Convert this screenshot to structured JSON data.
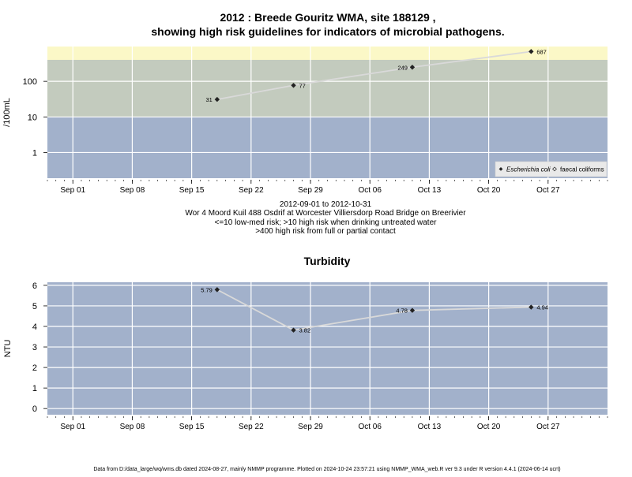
{
  "title_line1": "2012 : Breede Gouritz WMA, site 188129 ,",
  "title_line2": "showing high risk guidelines for indicators of microbial pathogens.",
  "caption": [
    "2012-09-01 to 2012-10-31",
    "Wor 4 Moord Kuil 488 Osdrif at Worcester Villiersdorp Road Bridge on Breerivier",
    "<=10 low-med risk; >10 high risk when drinking untreated water",
    ">400 high risk from full or partial contact"
  ],
  "footer": "Data from D:/data_large/wq/wms.db dated 2024-08-27, mainly NMMP programme. Plotted on 2024-10-24 23:57:21 using NMMP_WMA_web.R ver 9.3 under R version 4.4.1 (2024-06-14 ucrt)",
  "x_ticks": [
    {
      "label": "Sep 01",
      "date": "2012-09-01"
    },
    {
      "label": "Sep 08",
      "date": "2012-09-08"
    },
    {
      "label": "Sep 15",
      "date": "2012-09-15"
    },
    {
      "label": "Sep 22",
      "date": "2012-09-22"
    },
    {
      "label": "Sep 29",
      "date": "2012-09-29"
    },
    {
      "label": "Oct 06",
      "date": "2012-10-06"
    },
    {
      "label": "Oct 13",
      "date": "2012-10-13"
    },
    {
      "label": "Oct 20",
      "date": "2012-10-20"
    },
    {
      "label": "Oct 27",
      "date": "2012-10-27"
    }
  ],
  "chart_data": [
    {
      "type": "scatter",
      "title": "",
      "xlabel": "",
      "ylabel": "/100mL",
      "yscale": "log",
      "x_range": [
        "2012-08-29",
        "2012-11-03"
      ],
      "ylim": [
        0.19,
        950
      ],
      "y_ticks": [
        1,
        10,
        100
      ],
      "y_tick_labels": [
        "1",
        "10",
        "100"
      ],
      "grid": true,
      "risk_bands": [
        {
          "from": 0.19,
          "to": 10,
          "color": "#a2b1cb"
        },
        {
          "from": 10,
          "to": 400,
          "color": "#c3cbbe"
        },
        {
          "from": 400,
          "to": 950,
          "color": "#fbf8c7"
        }
      ],
      "legend_position": "bottom-right",
      "series": [
        {
          "name": "Escherichia coli",
          "marker": "diamond",
          "x": [
            "2012-09-18",
            "2012-09-27",
            "2012-10-11",
            "2012-10-25"
          ],
          "values": [
            31,
            77,
            249,
            687
          ],
          "labels": [
            "31",
            "77",
            "249",
            "687"
          ]
        },
        {
          "name": "faecal coliforms",
          "marker": "open-diamond",
          "x": [],
          "values": [],
          "labels": []
        }
      ]
    },
    {
      "type": "line",
      "title": "Turbidity",
      "xlabel": "",
      "ylabel": "NTU",
      "x_range": [
        "2012-08-29",
        "2012-11-03"
      ],
      "ylim": [
        -0.3,
        6.15
      ],
      "y_ticks": [
        0,
        1,
        2,
        3,
        4,
        5,
        6
      ],
      "y_tick_labels": [
        "0",
        "1",
        "2",
        "3",
        "4",
        "5",
        "6"
      ],
      "grid": true,
      "series": [
        {
          "name": "",
          "x": [
            "2012-09-18",
            "2012-09-27",
            "2012-10-11",
            "2012-10-25"
          ],
          "values": [
            5.79,
            3.82,
            4.78,
            4.94
          ],
          "labels": [
            "5.79",
            "3.82",
            "4.78",
            "4.94"
          ]
        }
      ]
    }
  ],
  "colors": {
    "panel_bg": "#a2b1cb",
    "gridline": "#ffffff",
    "series_line": "#d9d9d9",
    "marker": "#222222"
  }
}
